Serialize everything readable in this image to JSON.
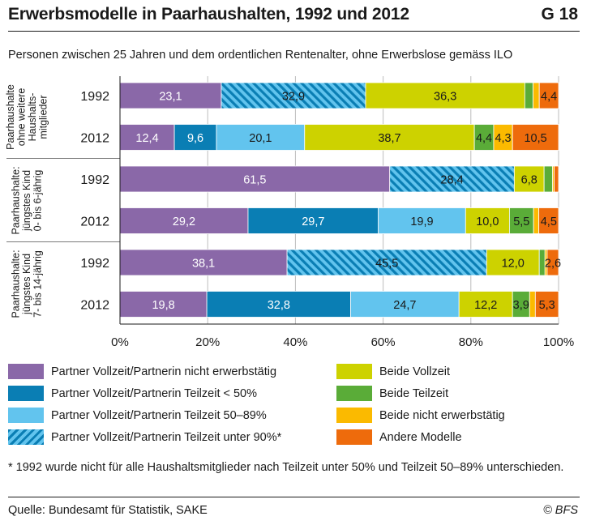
{
  "header": {
    "title": "Erwerbsmodelle in Paarhaushalten, 1992 und 2012",
    "code": "G 18",
    "subtitle": "Personen zwischen 25 Jahren und dem ordentlichen Rentenalter, ohne Erwerbslose gemäss ILO"
  },
  "chart_data": {
    "type": "bar",
    "orientation": "horizontal",
    "stacked": true,
    "xlim": [
      0,
      100
    ],
    "x_ticks": [
      "0%",
      "20%",
      "40%",
      "60%",
      "80%",
      "100%"
    ],
    "groups": [
      {
        "label_lines": [
          "Paarhaushalte",
          "ohne weitere",
          "Haushalts-",
          "mitglieder"
        ],
        "rows": [
          {
            "year": "1992",
            "segments": [
              {
                "series": 0,
                "value": 23.1,
                "label": "23,1"
              },
              {
                "series": 3,
                "value": 32.9,
                "label": "32,9"
              },
              {
                "series": 4,
                "value": 36.3,
                "label": "36,3"
              },
              {
                "series": 5,
                "value": 1.9,
                "label": ""
              },
              {
                "series": 6,
                "value": 1.4,
                "label": ""
              },
              {
                "series": 7,
                "value": 4.4,
                "label": "4,4"
              }
            ]
          },
          {
            "year": "2012",
            "segments": [
              {
                "series": 0,
                "value": 12.4,
                "label": "12,4"
              },
              {
                "series": 1,
                "value": 9.6,
                "label": "9,6"
              },
              {
                "series": 2,
                "value": 20.1,
                "label": "20,1"
              },
              {
                "series": 4,
                "value": 38.7,
                "label": "38,7"
              },
              {
                "series": 5,
                "value": 4.4,
                "label": "4,4"
              },
              {
                "series": 6,
                "value": 4.3,
                "label": "4,3"
              },
              {
                "series": 7,
                "value": 10.5,
                "label": "10,5"
              }
            ]
          }
        ]
      },
      {
        "label_lines": [
          "Paarhaushalte:",
          "jüngstes Kind",
          "0- bis 6-jährig"
        ],
        "rows": [
          {
            "year": "1992",
            "segments": [
              {
                "series": 0,
                "value": 61.5,
                "label": "61,5"
              },
              {
                "series": 3,
                "value": 28.4,
                "label": "28,4"
              },
              {
                "series": 4,
                "value": 6.8,
                "label": "6,8"
              },
              {
                "series": 5,
                "value": 1.9,
                "label": ""
              },
              {
                "series": 6,
                "value": 0.4,
                "label": ""
              },
              {
                "series": 7,
                "value": 1.0,
                "label": ""
              }
            ]
          },
          {
            "year": "2012",
            "segments": [
              {
                "series": 0,
                "value": 29.2,
                "label": "29,2"
              },
              {
                "series": 1,
                "value": 29.7,
                "label": "29,7"
              },
              {
                "series": 2,
                "value": 19.9,
                "label": "19,9"
              },
              {
                "series": 4,
                "value": 10.0,
                "label": "10,0"
              },
              {
                "series": 5,
                "value": 5.5,
                "label": "5,5"
              },
              {
                "series": 6,
                "value": 1.2,
                "label": ""
              },
              {
                "series": 7,
                "value": 4.5,
                "label": "4,5"
              }
            ]
          }
        ]
      },
      {
        "label_lines": [
          "Paarhaushalte:",
          "jüngstes Kind",
          "7- bis 14-jährig"
        ],
        "rows": [
          {
            "year": "1992",
            "segments": [
              {
                "series": 0,
                "value": 38.1,
                "label": "38,1"
              },
              {
                "series": 3,
                "value": 45.5,
                "label": "45,5"
              },
              {
                "series": 4,
                "value": 12.0,
                "label": "12,0"
              },
              {
                "series": 5,
                "value": 1.3,
                "label": ""
              },
              {
                "series": 6,
                "value": 0.5,
                "label": ""
              },
              {
                "series": 7,
                "value": 2.6,
                "label": "2,6"
              }
            ]
          },
          {
            "year": "2012",
            "segments": [
              {
                "series": 0,
                "value": 19.8,
                "label": "19,8"
              },
              {
                "series": 1,
                "value": 32.8,
                "label": "32,8"
              },
              {
                "series": 2,
                "value": 24.7,
                "label": "24,7"
              },
              {
                "series": 4,
                "value": 12.2,
                "label": "12,2"
              },
              {
                "series": 5,
                "value": 3.9,
                "label": "3,9"
              },
              {
                "series": 6,
                "value": 1.3,
                "label": ""
              },
              {
                "series": 7,
                "value": 5.3,
                "label": "5,3"
              }
            ]
          }
        ]
      }
    ],
    "series": [
      {
        "name": "Partner Vollzeit/Partnerin nicht erwerbstätig",
        "color": "#8a68a8",
        "hatched": false
      },
      {
        "name": "Partner Vollzeit/Partnerin Teilzeit < 50%",
        "color": "#0a7eb4",
        "hatched": false
      },
      {
        "name": "Partner Vollzeit/Partnerin Teilzeit 50–89%",
        "color": "#62c4ee",
        "hatched": false
      },
      {
        "name": "Partner Vollzeit/Partnerin Teilzeit unter 90%*",
        "color": "#62c4ee",
        "stripe_color": "#0a7eb4",
        "hatched": true
      },
      {
        "name": "Beide Vollzeit",
        "color": "#cdd200",
        "hatched": false
      },
      {
        "name": "Beide Teilzeit",
        "color": "#5aac38",
        "hatched": false
      },
      {
        "name": "Beide nicht erwerbstätig",
        "color": "#fbba00",
        "hatched": false
      },
      {
        "name": "Andere Modelle",
        "color": "#ee6b0c",
        "hatched": false
      }
    ],
    "light_label_series": [
      0,
      1
    ]
  },
  "footnote": "* 1992 wurde nicht für alle Haushaltsmitglieder nach Teilzeit unter 50% und Teilzeit 50–89% unterschieden.",
  "source": "Quelle: Bundesamt für Statistik, SAKE",
  "copyright": "© BFS"
}
